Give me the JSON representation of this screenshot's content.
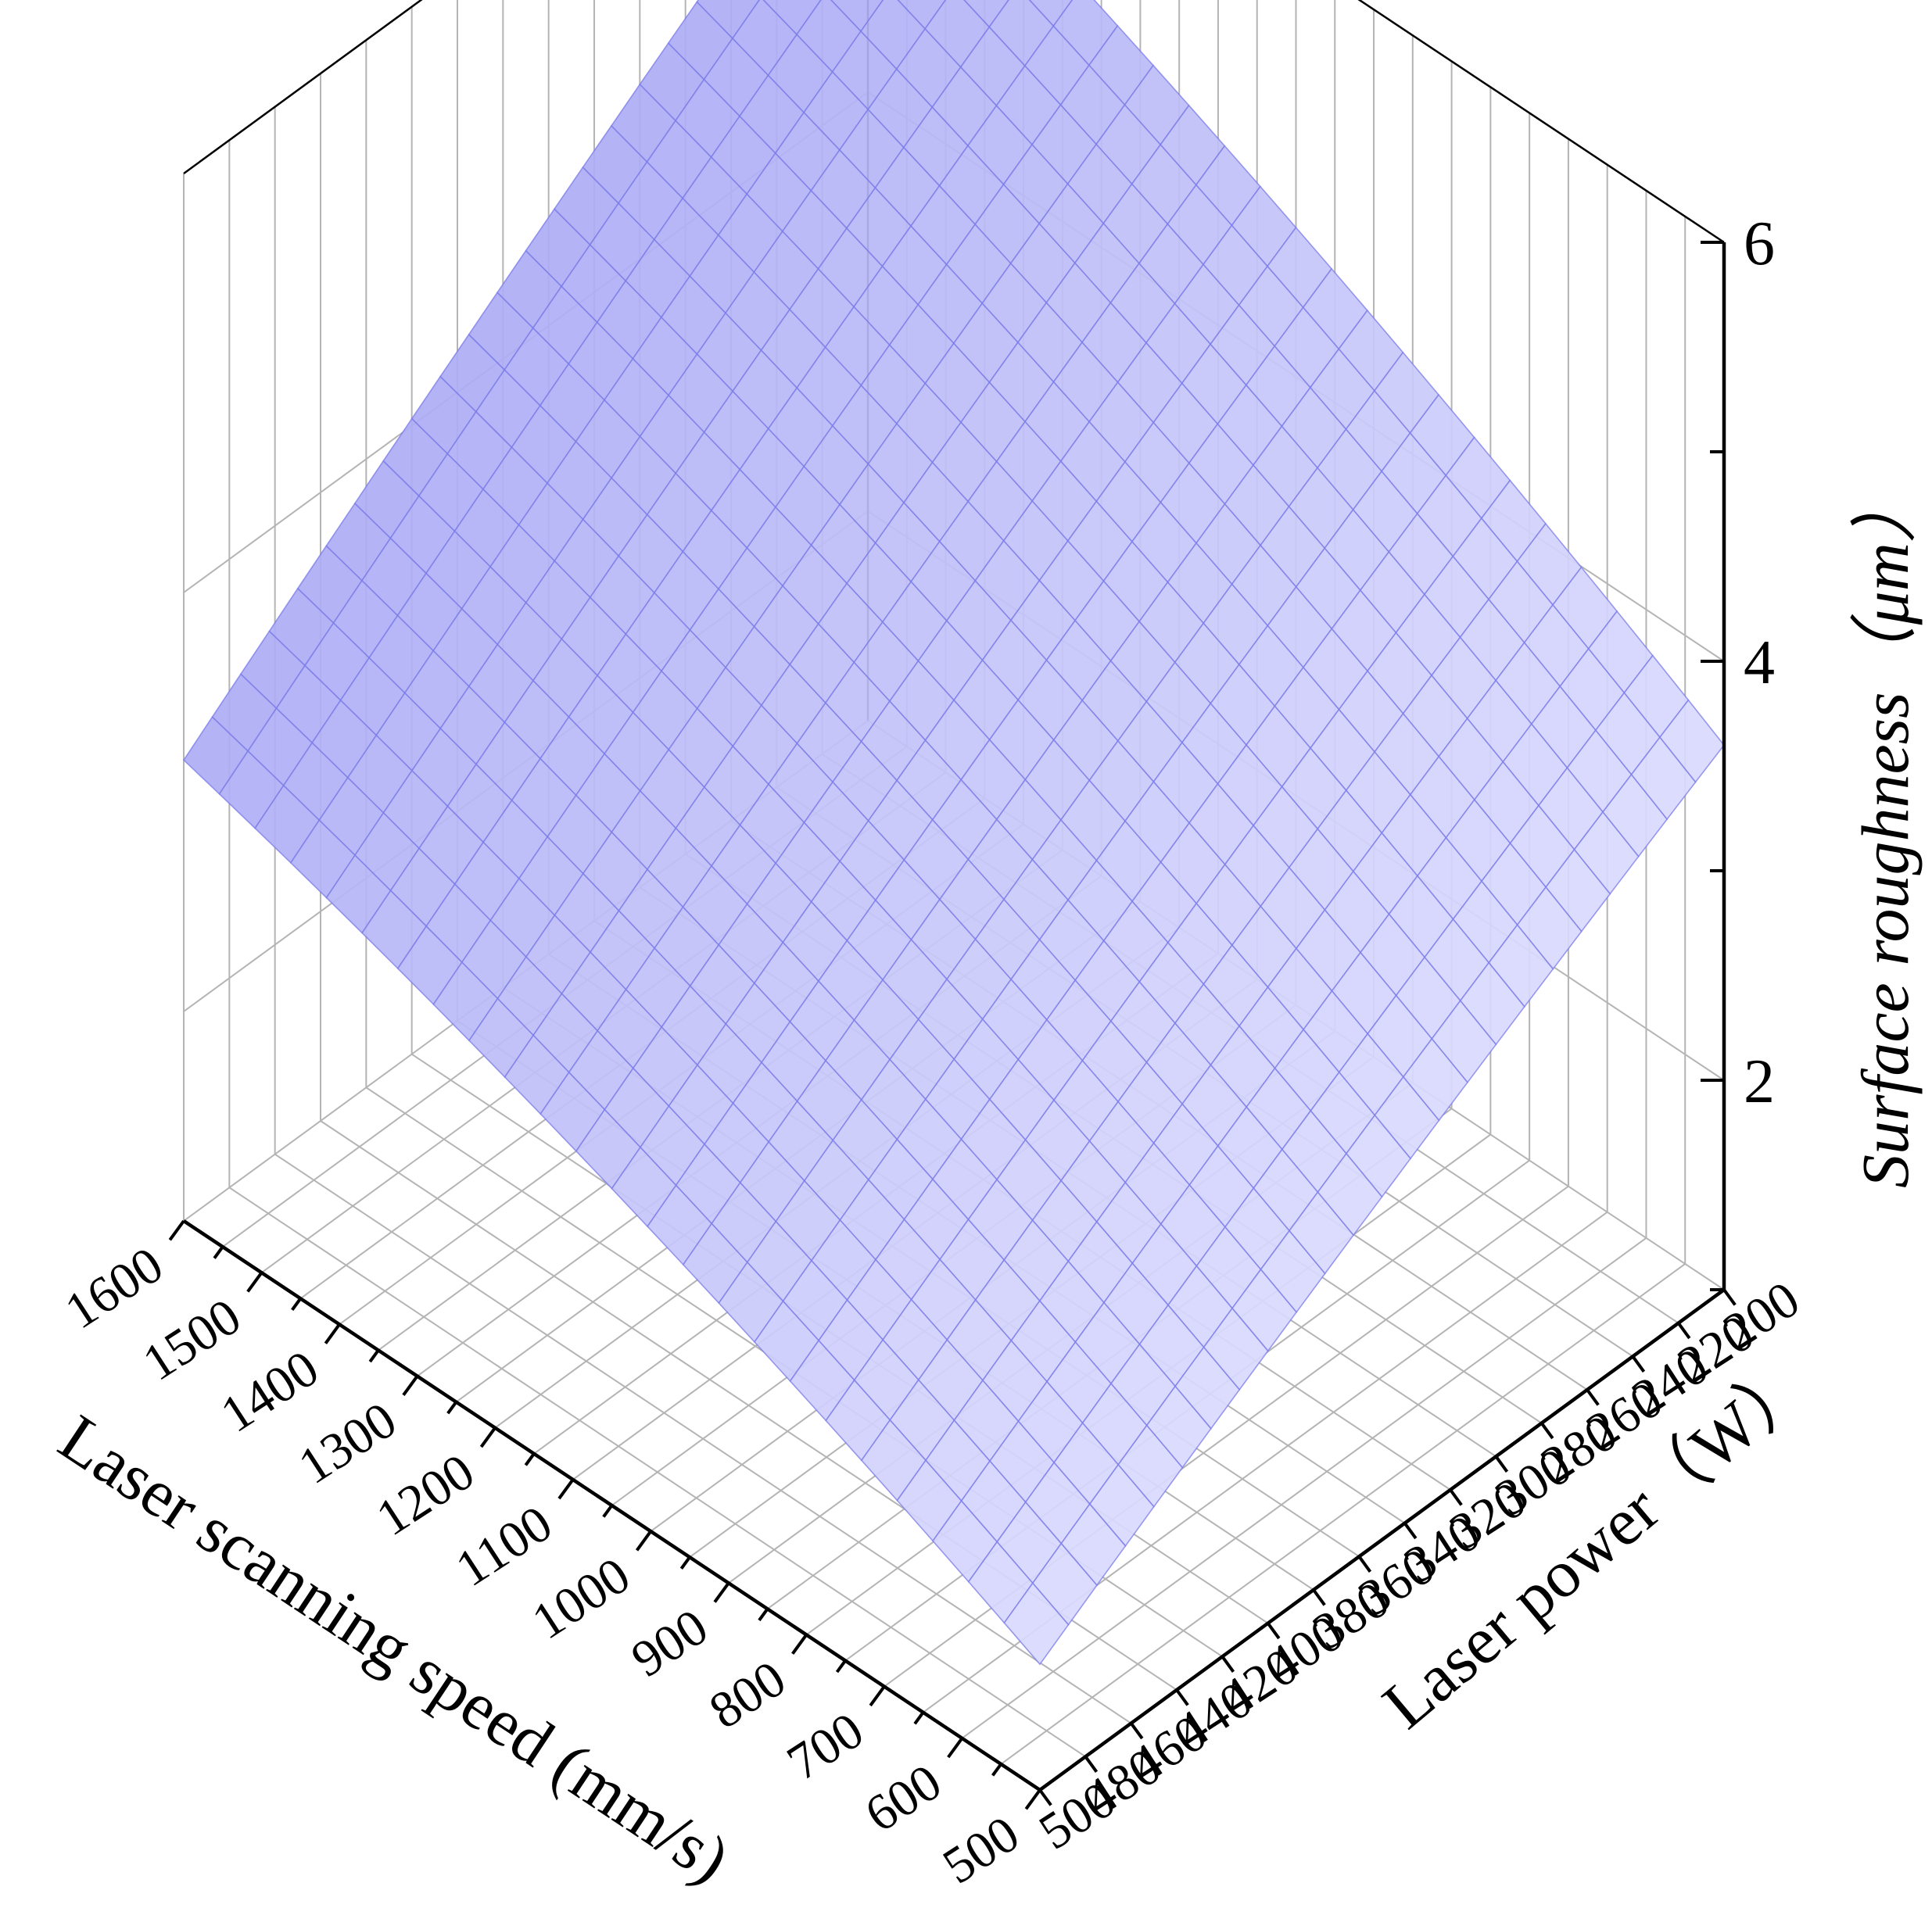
{
  "chart_data": {
    "type": "surface",
    "x_axis": {
      "label": "Laser scanning speed (mm/s)",
      "range": [
        500,
        1600
      ],
      "ticks": [
        1600,
        1500,
        1400,
        1300,
        1200,
        1100,
        1000,
        900,
        800,
        700,
        600,
        500
      ]
    },
    "y_axis": {
      "label": "Laser power（W）",
      "range": [
        200,
        500
      ],
      "ticks": [
        200,
        220,
        240,
        260,
        280,
        300,
        320,
        340,
        360,
        380,
        400,
        420,
        440,
        460,
        480,
        500
      ]
    },
    "z_axis": {
      "label": "Surface roughness（μm）",
      "range": [
        1,
        6
      ],
      "ticks": [
        2,
        4,
        6
      ]
    },
    "surface": {
      "description": "roughness as a function of speed and power",
      "corners": [
        {
          "speed": 1600,
          "power": 200,
          "roughness": 5.6
        },
        {
          "speed": 1600,
          "power": 500,
          "roughness": 3.2
        },
        {
          "speed": 500,
          "power": 200,
          "roughness": 3.6
        },
        {
          "speed": 500,
          "power": 500,
          "roughness": 1.6
        }
      ],
      "grid_speed_steps": 24,
      "grid_power_steps": 24
    },
    "colors": {
      "surface_light": "#dcdcff",
      "surface_dark": "#a6a6f4",
      "mesh_line": "#7a7ae8",
      "grid_line": "#b4b4b4",
      "axis_line": "#000000"
    },
    "grid": true
  }
}
